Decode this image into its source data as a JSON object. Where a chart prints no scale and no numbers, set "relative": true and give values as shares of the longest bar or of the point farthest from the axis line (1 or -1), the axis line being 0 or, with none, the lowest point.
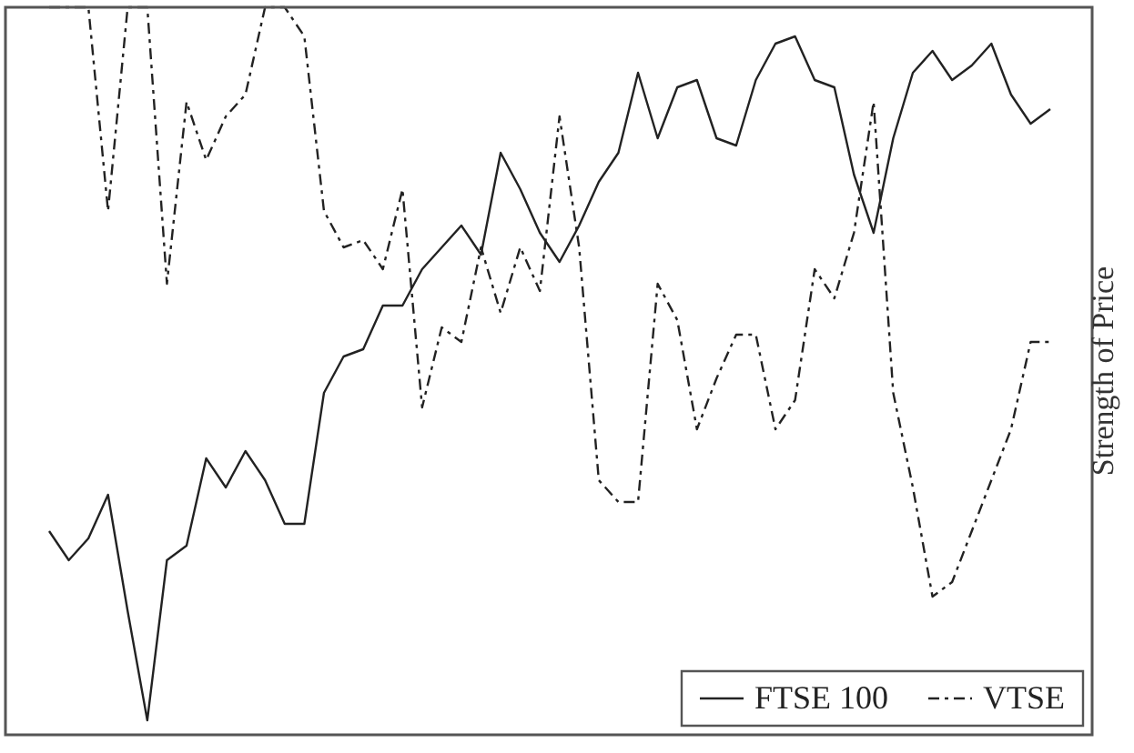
{
  "chart_data": {
    "type": "line",
    "relative": true,
    "ylabel": "Strength of Price",
    "legend": "bottom right",
    "marker": "none",
    "categories": [
      null,
      null,
      null,
      null,
      null,
      null,
      null,
      null,
      null,
      null,
      null,
      null,
      null,
      null,
      null,
      null,
      null,
      null,
      null,
      null,
      null,
      null,
      null,
      null,
      null,
      null,
      null,
      null,
      null,
      null,
      null,
      null,
      null,
      null,
      null,
      null,
      null,
      null,
      null,
      null,
      null,
      null,
      null,
      null,
      null,
      null,
      null,
      null,
      null,
      null,
      null,
      null
    ],
    "series": [
      {
        "name": "FTSE 100",
        "color": "#222222",
        "line_style": "solid",
        "values": [
          0.28,
          0.24,
          0.27,
          0.33,
          0.17,
          0.02,
          0.24,
          0.26,
          0.38,
          0.34,
          0.39,
          0.35,
          0.29,
          0.29,
          0.47,
          0.52,
          0.53,
          0.59,
          0.59,
          0.64,
          0.67,
          0.7,
          0.66,
          0.8,
          0.75,
          0.69,
          0.65,
          0.7,
          0.76,
          0.8,
          0.91,
          0.82,
          0.89,
          0.9,
          0.82,
          0.81,
          0.9,
          0.95,
          0.96,
          0.9,
          0.89,
          0.77,
          0.69,
          0.82,
          0.91,
          0.94,
          0.9,
          0.92,
          0.95,
          0.88,
          0.84,
          0.86
        ]
      },
      {
        "name": "VTSE",
        "color": "#222222",
        "line_style": "dashed",
        "values": [
          1,
          1,
          1,
          0.72,
          1,
          1,
          0.62,
          0.87,
          0.79,
          0.85,
          0.88,
          1,
          1,
          0.96,
          0.72,
          0.67,
          0.68,
          0.64,
          0.75,
          0.45,
          0.56,
          0.54,
          0.67,
          0.58,
          0.67,
          0.61,
          0.85,
          0.67,
          0.35,
          0.32,
          0.32,
          0.62,
          0.57,
          0.42,
          0.49,
          0.55,
          0.55,
          0.42,
          0.46,
          0.64,
          0.6,
          0.69,
          0.87,
          0.47,
          0.34,
          0.19,
          0.21,
          0.28,
          0.35,
          0.42,
          0.54,
          0.54
        ]
      }
    ]
  }
}
